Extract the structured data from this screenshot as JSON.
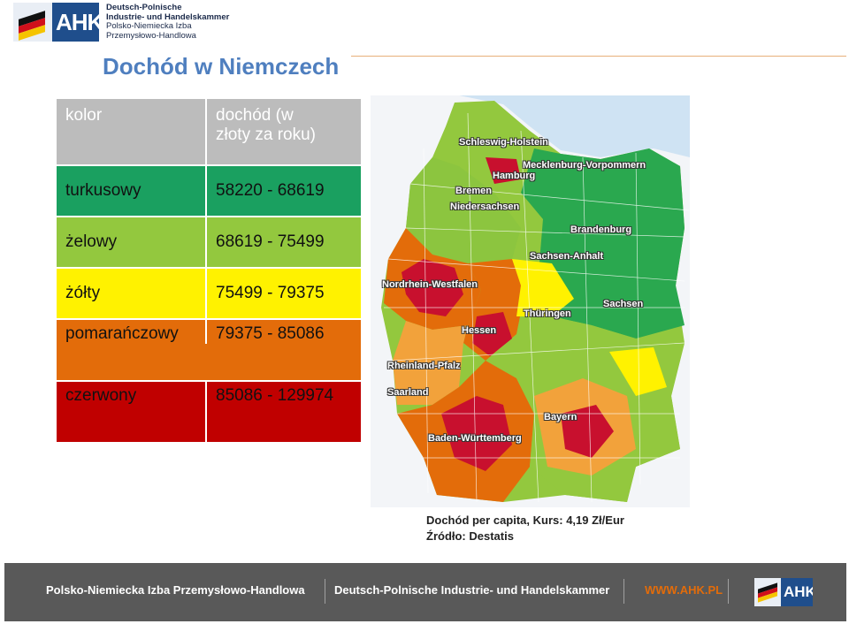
{
  "header": {
    "logo_text": "AHK",
    "org_lines": [
      "Deutsch-Polnische",
      "Industrie- und Handelskammer",
      "Polsko-Niemiecka Izba",
      "Przemysłowo-Handlowa"
    ]
  },
  "title": "Dochód w Niemczech",
  "legend": {
    "head": {
      "color": "kolor",
      "income": "dochód (w złoty za roku)"
    },
    "rows": [
      {
        "color": "turkusowy",
        "range": "58220 - 68619",
        "swatch": "#1aa060"
      },
      {
        "color": "żelowy",
        "range": "68619 - 75499",
        "swatch": "#93c83e"
      },
      {
        "color": "żółty",
        "range": "75499 - 79375",
        "swatch": "#fff200"
      },
      {
        "color": "pomarańczowy",
        "range": "79375 - 85086",
        "swatch": "#e36c0a"
      },
      {
        "color": "czerwony",
        "range": "85086 - 129974",
        "swatch": "#c00000"
      }
    ]
  },
  "map": {
    "labels": {
      "sh": "Schleswig-Holstein",
      "mv": "Mecklenburg-Vorpommern",
      "hh": "Hamburg",
      "hb": "Bremen",
      "ni": "Niedersachsen",
      "bb": "Brandenburg",
      "st": "Sachsen-Anhalt",
      "nw": "Nordrhein-Westfalen",
      "sn": "Sachsen",
      "th": "Thüringen",
      "he": "Hessen",
      "rp": "Rheinland-Pfalz",
      "sl": "Saarland",
      "by": "Bayern",
      "bw": "Baden-Württemberg"
    }
  },
  "caption": {
    "line1": "Dochód per capita, Kurs: 4,19 Zł/Eur",
    "line2": "Źródło: Destatis"
  },
  "footer": {
    "pl": "Polsko-Niemiecka Izba Przemysłowo-Handlowa",
    "de": "Deutsch-Polnische Industrie- und Handelskammer",
    "web": "WWW.AHK.PL",
    "logo_text": "AHK"
  }
}
